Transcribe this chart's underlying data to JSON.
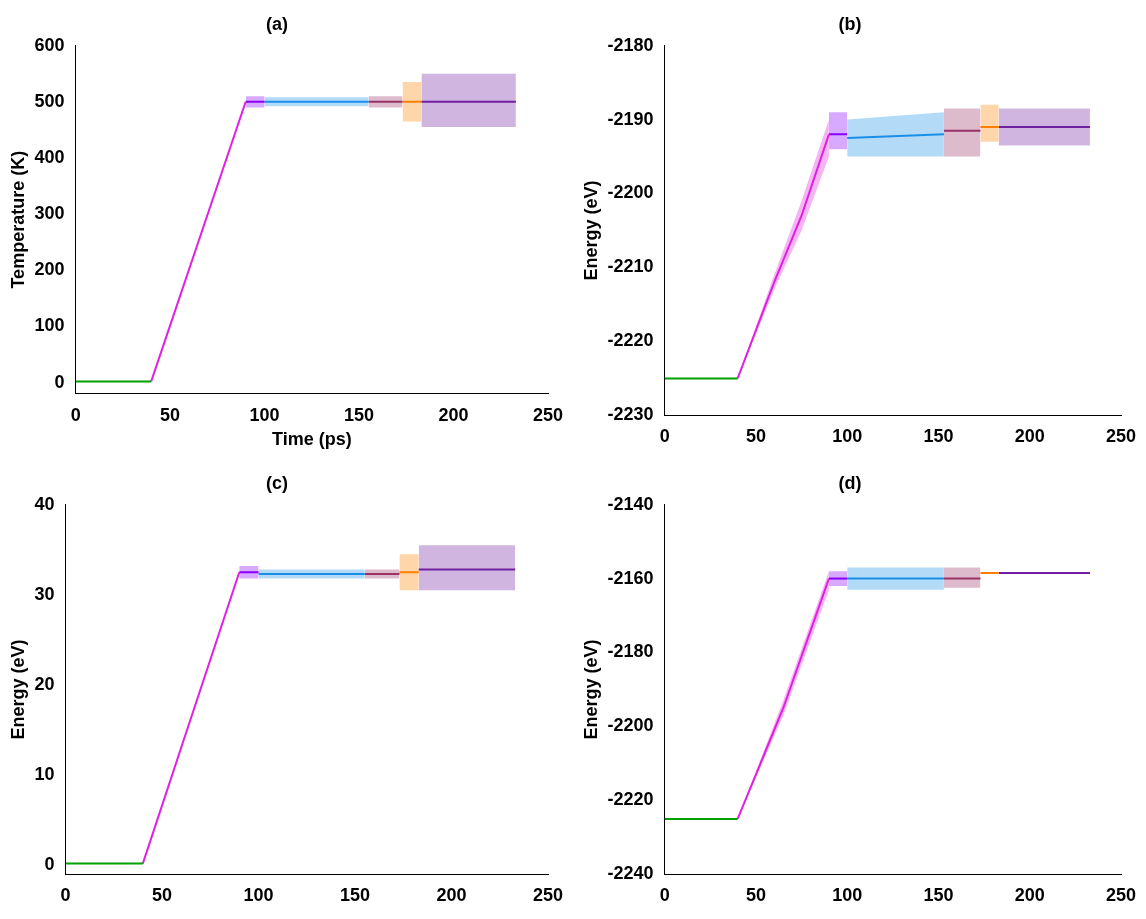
{
  "chart_data": [
    {
      "type": "line",
      "title": "(a)",
      "xlabel": "Time (ps)",
      "ylabel": "Temperature (K)",
      "xlim": [
        0,
        250
      ],
      "xticks": [
        0,
        50,
        100,
        150,
        200,
        250
      ],
      "ylim": [
        -20,
        600
      ],
      "yticks": [
        0,
        100,
        200,
        300,
        400,
        500,
        600
      ],
      "grid": false,
      "legend": false,
      "marker": "none",
      "series": [
        {
          "color": "#00a000",
          "x": [
            0,
            40
          ],
          "values": [
            2,
            2
          ]
        },
        {
          "color": "#e020e0",
          "x": [
            40,
            90
          ],
          "values": [
            2,
            500
          ]
        },
        {
          "color": "#8a00ff",
          "x": [
            90,
            100
          ],
          "values": [
            500,
            500
          ],
          "lower": [
            490,
            490
          ],
          "upper": [
            510,
            510
          ]
        },
        {
          "color": "#1a8fe8",
          "x": [
            100,
            155
          ],
          "values": [
            500,
            500
          ],
          "lower": [
            492,
            492
          ],
          "upper": [
            508,
            508
          ]
        },
        {
          "color": "#993366",
          "x": [
            155,
            173
          ],
          "values": [
            500,
            500
          ],
          "lower": [
            490,
            490
          ],
          "upper": [
            510,
            510
          ]
        },
        {
          "color": "#ff8000",
          "x": [
            173,
            183
          ],
          "values": [
            500,
            500
          ],
          "lower": [
            465,
            465
          ],
          "upper": [
            535,
            535
          ]
        },
        {
          "color": "#7020a0",
          "x": [
            183,
            233
          ],
          "values": [
            500,
            500
          ],
          "lower": [
            455,
            455
          ],
          "upper": [
            550,
            550
          ]
        }
      ]
    },
    {
      "type": "line",
      "title": "(b)",
      "ylabel": "Energy (eV)",
      "xlim": [
        0,
        250
      ],
      "xticks": [
        0,
        50,
        100,
        150,
        200,
        250
      ],
      "ylim": [
        -2230,
        -2180
      ],
      "yticks": [
        -2230,
        -2220,
        -2210,
        -2200,
        -2190,
        -2180
      ],
      "grid": false,
      "legend": false,
      "marker": "none",
      "series": [
        {
          "color": "#00a000",
          "x": [
            0,
            40
          ],
          "values": [
            -2225,
            -2225
          ]
        },
        {
          "color": "#e020e0",
          "x": [
            40,
            60,
            75,
            90
          ],
          "values": [
            -2225,
            -2212,
            -2203,
            -2192
          ],
          "lower": [
            -2225,
            -2213,
            -2205,
            -2195
          ],
          "upper": [
            -2225,
            -2211,
            -2201,
            -2190
          ]
        },
        {
          "color": "#8a00ff",
          "x": [
            90,
            100
          ],
          "values": [
            -2192,
            -2192
          ],
          "lower": [
            -2194,
            -2194
          ],
          "upper": [
            -2189,
            -2189
          ]
        },
        {
          "color": "#1a8fe8",
          "x": [
            100,
            153
          ],
          "values": [
            -2192.5,
            -2192
          ],
          "lower": [
            -2195,
            -2195
          ],
          "upper": [
            -2190,
            -2189
          ]
        },
        {
          "color": "#993366",
          "x": [
            153,
            173
          ],
          "values": [
            -2191.5,
            -2191.5
          ],
          "lower": [
            -2195,
            -2195
          ],
          "upper": [
            -2188.5,
            -2188.5
          ]
        },
        {
          "color": "#ff8000",
          "x": [
            173,
            183
          ],
          "values": [
            -2191,
            -2191
          ],
          "lower": [
            -2193,
            -2193
          ],
          "upper": [
            -2188,
            -2188
          ]
        },
        {
          "color": "#7020a0",
          "x": [
            183,
            233
          ],
          "values": [
            -2191,
            -2191
          ],
          "lower": [
            -2193.5,
            -2193.5
          ],
          "upper": [
            -2188.5,
            -2188.5
          ]
        }
      ]
    },
    {
      "type": "line",
      "title": "(c)",
      "ylabel": "Energy (eV)",
      "xlim": [
        0,
        250
      ],
      "xticks": [
        0,
        50,
        100,
        150,
        200,
        250
      ],
      "ylim": [
        -1,
        40
      ],
      "yticks": [
        0,
        10,
        20,
        30,
        40
      ],
      "grid": false,
      "legend": false,
      "marker": "none",
      "series": [
        {
          "color": "#00a000",
          "x": [
            0,
            40
          ],
          "values": [
            0.2,
            0.2
          ]
        },
        {
          "color": "#e020e0",
          "x": [
            40,
            90
          ],
          "values": [
            0.2,
            32.5
          ]
        },
        {
          "color": "#8a00ff",
          "x": [
            90,
            100
          ],
          "values": [
            32.5,
            32.5
          ],
          "lower": [
            31.8,
            31.8
          ],
          "upper": [
            33.2,
            33.2
          ]
        },
        {
          "color": "#1a8fe8",
          "x": [
            100,
            155
          ],
          "values": [
            32.3,
            32.3
          ],
          "lower": [
            31.8,
            31.8
          ],
          "upper": [
            32.8,
            32.8
          ]
        },
        {
          "color": "#993366",
          "x": [
            155,
            173
          ],
          "values": [
            32.3,
            32.3
          ],
          "lower": [
            31.8,
            31.8
          ],
          "upper": [
            32.8,
            32.8
          ]
        },
        {
          "color": "#ff8000",
          "x": [
            173,
            183
          ],
          "values": [
            32.5,
            32.5
          ],
          "lower": [
            30.5,
            30.5
          ],
          "upper": [
            34.5,
            34.5
          ]
        },
        {
          "color": "#7020a0",
          "x": [
            183,
            233
          ],
          "values": [
            32.8,
            32.8
          ],
          "lower": [
            30.5,
            30.5
          ],
          "upper": [
            35.5,
            35.5
          ]
        }
      ]
    },
    {
      "type": "line",
      "title": "(d)",
      "ylabel": "Energy (eV)",
      "xlim": [
        0,
        250
      ],
      "xticks": [
        0,
        50,
        100,
        150,
        200,
        250
      ],
      "ylim": [
        -2240,
        -2140
      ],
      "yticks": [
        -2240,
        -2220,
        -2200,
        -2180,
        -2160,
        -2140
      ],
      "grid": false,
      "legend": false,
      "marker": "none",
      "series": [
        {
          "color": "#00a000",
          "x": [
            0,
            40
          ],
          "values": [
            -2225,
            -2225
          ]
        },
        {
          "color": "#e020e0",
          "x": [
            40,
            65,
            90
          ],
          "values": [
            -2225,
            -2195,
            -2160
          ],
          "lower": [
            -2225,
            -2197,
            -2163
          ],
          "upper": [
            -2225,
            -2193,
            -2158
          ]
        },
        {
          "color": "#8a00ff",
          "x": [
            90,
            100
          ],
          "values": [
            -2160,
            -2160
          ],
          "lower": [
            -2162,
            -2162
          ],
          "upper": [
            -2158,
            -2158
          ]
        },
        {
          "color": "#1a8fe8",
          "x": [
            100,
            153
          ],
          "values": [
            -2160,
            -2160
          ],
          "lower": [
            -2163,
            -2163
          ],
          "upper": [
            -2157,
            -2157
          ]
        },
        {
          "color": "#993366",
          "x": [
            153,
            173
          ],
          "values": [
            -2160,
            -2160
          ],
          "lower": [
            -2162.5,
            -2162.5
          ],
          "upper": [
            -2157,
            -2157
          ]
        },
        {
          "color": "#ff8000",
          "x": [
            173,
            183
          ],
          "values": [
            -2158.5,
            -2158.5
          ]
        },
        {
          "color": "#7020a0",
          "x": [
            183,
            233
          ],
          "values": [
            -2158.5,
            -2158.5
          ]
        }
      ]
    }
  ]
}
